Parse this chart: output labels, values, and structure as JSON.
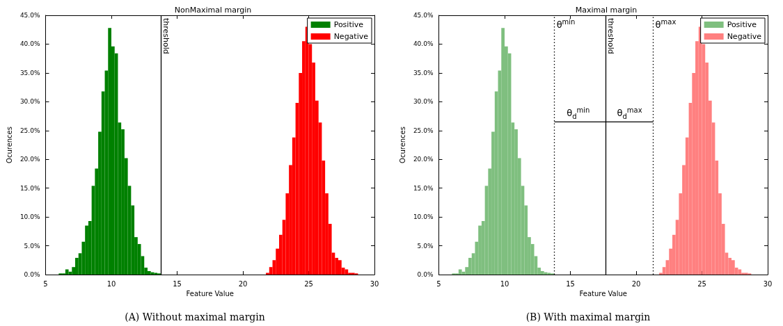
{
  "chart_data": [
    {
      "type": "histogram",
      "title": "NonMaximal margin",
      "xlabel": "Feature Value",
      "ylabel": "Ocurences",
      "xlim": [
        5,
        30
      ],
      "xticks": [
        5,
        10,
        15,
        20,
        25,
        30
      ],
      "ylim": [
        0,
        45
      ],
      "yticks": [
        {
          "value": 0,
          "label": "0.0%"
        },
        {
          "value": 5,
          "label": "5.0%"
        },
        {
          "value": 10,
          "label": "10.0%"
        },
        {
          "value": 15,
          "label": "15.0%"
        },
        {
          "value": 20,
          "label": "20.0%"
        },
        {
          "value": 25,
          "label": "25.0%"
        },
        {
          "value": 30,
          "label": "30.0%"
        },
        {
          "value": 35,
          "label": "35.0%"
        },
        {
          "value": 40,
          "label": "40.0%"
        },
        {
          "value": 45,
          "label": "45.0%"
        }
      ],
      "legend": "top right",
      "bins": [
        6,
        6.25,
        6.5,
        6.75,
        7,
        7.25,
        7.5,
        7.75,
        8,
        8.25,
        8.5,
        8.75,
        9,
        9.25,
        9.5,
        9.75,
        10,
        10.25,
        10.5,
        10.75,
        11,
        11.25,
        11.5,
        11.75,
        12,
        12.25,
        12.5,
        12.75,
        13,
        13.25,
        13.5,
        13.75,
        14,
        14.25,
        14.5,
        14.75,
        15,
        15.25,
        15.5,
        15.75,
        16,
        16.25,
        16.5,
        16.75,
        17,
        17.25,
        17.5,
        17.75,
        18,
        18.25,
        18.5,
        18.75,
        19,
        19.25,
        19.5,
        19.75,
        20,
        20.25,
        20.5,
        20.75,
        21,
        21.25,
        21.5,
        21.75,
        22,
        22.25,
        22.5,
        22.75,
        23,
        23.25,
        23.5,
        23.75,
        24,
        24.25,
        24.5,
        24.75,
        25,
        25.25,
        25.5,
        25.75,
        26,
        26.25,
        26.5,
        26.75,
        27,
        27.25,
        27.5,
        27.75,
        28,
        28.25,
        28.5,
        28.75
      ],
      "series": [
        {
          "name": "Positive",
          "color": "#008000",
          "values": [
            0.2,
            0.2,
            0.9,
            0.5,
            1.3,
            2.9,
            3.7,
            5.7,
            8.5,
            9.3,
            15.4,
            18.4,
            24.8,
            31.8,
            35.4,
            42.8,
            39.6,
            38.4,
            26.4,
            25.2,
            20.2,
            15.4,
            12.0,
            6.5,
            5.3,
            3.2,
            1.2,
            0.6,
            0.4,
            0.3,
            0.2,
            null,
            null,
            null,
            null,
            null,
            null,
            null,
            null,
            null,
            null,
            null,
            null,
            null,
            null,
            null,
            null,
            null,
            null,
            null,
            null,
            null,
            null,
            null,
            null,
            null,
            null,
            null,
            null,
            null,
            null,
            null,
            null,
            null,
            null,
            null,
            null,
            null,
            null,
            null,
            null,
            null,
            null,
            null,
            null,
            null,
            null,
            null,
            null,
            null,
            null,
            null,
            null,
            null,
            null,
            null,
            null,
            null,
            null,
            null,
            null
          ]
        },
        {
          "name": "Negative",
          "color": "#ff0000",
          "values": [
            null,
            null,
            null,
            null,
            null,
            null,
            null,
            null,
            null,
            null,
            null,
            null,
            null,
            null,
            null,
            null,
            null,
            null,
            null,
            null,
            null,
            null,
            null,
            null,
            null,
            null,
            null,
            null,
            null,
            null,
            null,
            null,
            null,
            null,
            null,
            null,
            null,
            null,
            null,
            null,
            null,
            null,
            null,
            null,
            null,
            null,
            null,
            null,
            null,
            null,
            null,
            null,
            null,
            null,
            null,
            null,
            null,
            null,
            null,
            null,
            null,
            null,
            null,
            0.3,
            1.3,
            2.5,
            4.5,
            6.9,
            9.5,
            14.1,
            19.0,
            23.8,
            29.8,
            35.0,
            40.5,
            43.0,
            40.0,
            36.8,
            30.2,
            26.4,
            19.8,
            14.1,
            8.8,
            3.8,
            2.9,
            2.5,
            1.2,
            0.9,
            0.3,
            0.3,
            0.2
          ]
        }
      ],
      "ref_lines": [
        {
          "axis": "x",
          "value": 13.77,
          "label": "threshold",
          "color": "#000000",
          "line_style": "solid"
        }
      ],
      "annotations": [
        "(A) Without maximal margin"
      ]
    },
    {
      "type": "histogram",
      "title": "Maximal margin",
      "xlabel": "Feature Value",
      "ylabel": "Ocurences",
      "xlim": [
        5,
        30
      ],
      "xticks": [
        5,
        10,
        15,
        20,
        25,
        30
      ],
      "ylim": [
        0,
        45
      ],
      "yticks": [
        {
          "value": 0,
          "label": "0.0%"
        },
        {
          "value": 5,
          "label": "5.0%"
        },
        {
          "value": 10,
          "label": "10.0%"
        },
        {
          "value": 15,
          "label": "15.0%"
        },
        {
          "value": 20,
          "label": "20.0%"
        },
        {
          "value": 25,
          "label": "25.0%"
        },
        {
          "value": 30,
          "label": "30.0%"
        },
        {
          "value": 35,
          "label": "35.0%"
        },
        {
          "value": 40,
          "label": "40.0%"
        },
        {
          "value": 45,
          "label": "45.0%"
        }
      ],
      "legend": "top right",
      "bins": [
        6,
        6.25,
        6.5,
        6.75,
        7,
        7.25,
        7.5,
        7.75,
        8,
        8.25,
        8.5,
        8.75,
        9,
        9.25,
        9.5,
        9.75,
        10,
        10.25,
        10.5,
        10.75,
        11,
        11.25,
        11.5,
        11.75,
        12,
        12.25,
        12.5,
        12.75,
        13,
        13.25,
        13.5,
        13.75,
        14,
        14.25,
        14.5,
        14.75,
        15,
        15.25,
        15.5,
        15.75,
        16,
        16.25,
        16.5,
        16.75,
        17,
        17.25,
        17.5,
        17.75,
        18,
        18.25,
        18.5,
        18.75,
        19,
        19.25,
        19.5,
        19.75,
        20,
        20.25,
        20.5,
        20.75,
        21,
        21.25,
        21.5,
        21.75,
        22,
        22.25,
        22.5,
        22.75,
        23,
        23.25,
        23.5,
        23.75,
        24,
        24.25,
        24.5,
        24.75,
        25,
        25.25,
        25.5,
        25.75,
        26,
        26.25,
        26.5,
        26.75,
        27,
        27.25,
        27.5,
        27.75,
        28,
        28.25,
        28.5,
        28.75
      ],
      "series": [
        {
          "name": "Positive",
          "color": "#7fbf7f",
          "values": [
            0.2,
            0.2,
            0.9,
            0.5,
            1.3,
            2.9,
            3.7,
            5.7,
            8.5,
            9.3,
            15.4,
            18.4,
            24.8,
            31.8,
            35.4,
            42.8,
            39.6,
            38.4,
            26.4,
            25.2,
            20.2,
            15.4,
            12.0,
            6.5,
            5.3,
            3.2,
            1.2,
            0.6,
            0.4,
            0.3,
            0.2,
            null,
            null,
            null,
            null,
            null,
            null,
            null,
            null,
            null,
            null,
            null,
            null,
            null,
            null,
            null,
            null,
            null,
            null,
            null,
            null,
            null,
            null,
            null,
            null,
            null,
            null,
            null,
            null,
            null,
            null,
            null,
            null,
            null,
            null,
            null,
            null,
            null,
            null,
            null,
            null,
            null,
            null,
            null,
            null,
            null,
            null,
            null,
            null,
            null,
            null,
            null,
            null,
            null,
            null,
            null,
            null,
            null,
            null,
            null,
            null
          ]
        },
        {
          "name": "Negative",
          "color": "#ff8080",
          "values": [
            null,
            null,
            null,
            null,
            null,
            null,
            null,
            null,
            null,
            null,
            null,
            null,
            null,
            null,
            null,
            null,
            null,
            null,
            null,
            null,
            null,
            null,
            null,
            null,
            null,
            null,
            null,
            null,
            null,
            null,
            null,
            null,
            null,
            null,
            null,
            null,
            null,
            null,
            null,
            null,
            null,
            null,
            null,
            null,
            null,
            null,
            null,
            null,
            null,
            null,
            null,
            null,
            null,
            null,
            null,
            null,
            null,
            null,
            null,
            null,
            null,
            null,
            null,
            0.3,
            1.3,
            2.5,
            4.5,
            6.9,
            9.5,
            14.1,
            19.0,
            23.8,
            29.8,
            35.0,
            40.5,
            43.0,
            40.0,
            36.8,
            30.2,
            26.4,
            19.8,
            14.1,
            8.8,
            3.8,
            2.9,
            2.5,
            1.2,
            0.9,
            0.3,
            0.3,
            0.2
          ]
        },
        {
          "type": "line",
          "color": "#000000",
          "x": [
            13.79,
            21.3
          ],
          "values": [
            26.5,
            26.5
          ]
        }
      ],
      "ref_lines": [
        {
          "axis": "x",
          "value": 13.79,
          "label": "θ$^{min}$",
          "color": "#000000",
          "line_style": "dotted"
        },
        {
          "axis": "x",
          "value": 17.68,
          "label": "threshold",
          "color": "#000000",
          "line_style": "solid"
        },
        {
          "axis": "x",
          "value": 21.3,
          "label": "θ$^{max}$",
          "color": "#000000",
          "line_style": "dotted"
        }
      ],
      "annotations": [
        {
          "text": "θ$_{d}$$^{min}$",
          "x": 15.6,
          "y": 26.5
        },
        {
          "text": "θ$_{d}$$^{max}$",
          "x": 19.5,
          "y": 26.5
        },
        "(B) With maximal margin"
      ]
    }
  ]
}
